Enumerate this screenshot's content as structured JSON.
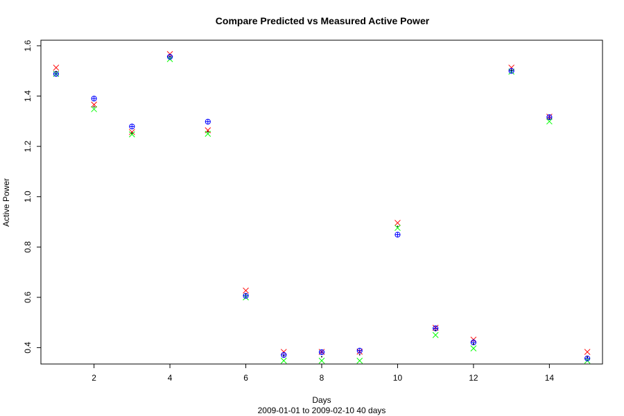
{
  "chart_data": {
    "type": "scatter",
    "title": "Compare Predicted vs Measured Active Power",
    "xlabel": "Days",
    "xlabel_sub": "2009-01-01  to  2009-02-10   40 days",
    "ylabel": "Active Power",
    "xlim": [
      0.6,
      15.4
    ],
    "ylim": [
      0.335,
      1.622
    ],
    "xticks": [
      2,
      4,
      6,
      8,
      10,
      12,
      14
    ],
    "yticks": [
      0.4,
      0.6,
      0.8,
      1.0,
      1.2,
      1.4,
      1.6
    ],
    "ytick_labels": [
      "0.4",
      "0.6",
      "0.8",
      "1.0",
      "1.2",
      "1.4",
      "1.6"
    ],
    "grid": false,
    "x": [
      1,
      2,
      3,
      4,
      5,
      6,
      7,
      8,
      9,
      10,
      11,
      12,
      13,
      14,
      15
    ],
    "series": [
      {
        "marker": "cross-x",
        "color": "#ff0000",
        "values": [
          1.513,
          1.366,
          1.257,
          1.567,
          1.264,
          0.627,
          0.383,
          0.383,
          0.384,
          0.896,
          0.479,
          0.432,
          1.513,
          1.318,
          0.383
        ]
      },
      {
        "marker": "cross-x",
        "color": "#00ff00",
        "values": [
          1.488,
          1.348,
          1.248,
          1.547,
          1.25,
          0.6,
          0.348,
          0.348,
          0.348,
          0.876,
          0.45,
          0.397,
          1.497,
          1.299,
          0.348
        ]
      },
      {
        "marker": "circle-plus",
        "color": "#0000ff",
        "values": [
          1.488,
          1.39,
          1.279,
          1.556,
          1.298,
          0.606,
          0.371,
          0.382,
          0.388,
          0.849,
          0.477,
          0.421,
          1.5,
          1.316,
          0.357
        ]
      },
      {
        "marker": "dot",
        "color": "#000000",
        "values": [
          1.497,
          1.357,
          1.253,
          1.557,
          1.258,
          0.612,
          0.368,
          0.364,
          0.372,
          0.882,
          0.468,
          0.415,
          1.503,
          1.31,
          0.362
        ]
      }
    ]
  }
}
